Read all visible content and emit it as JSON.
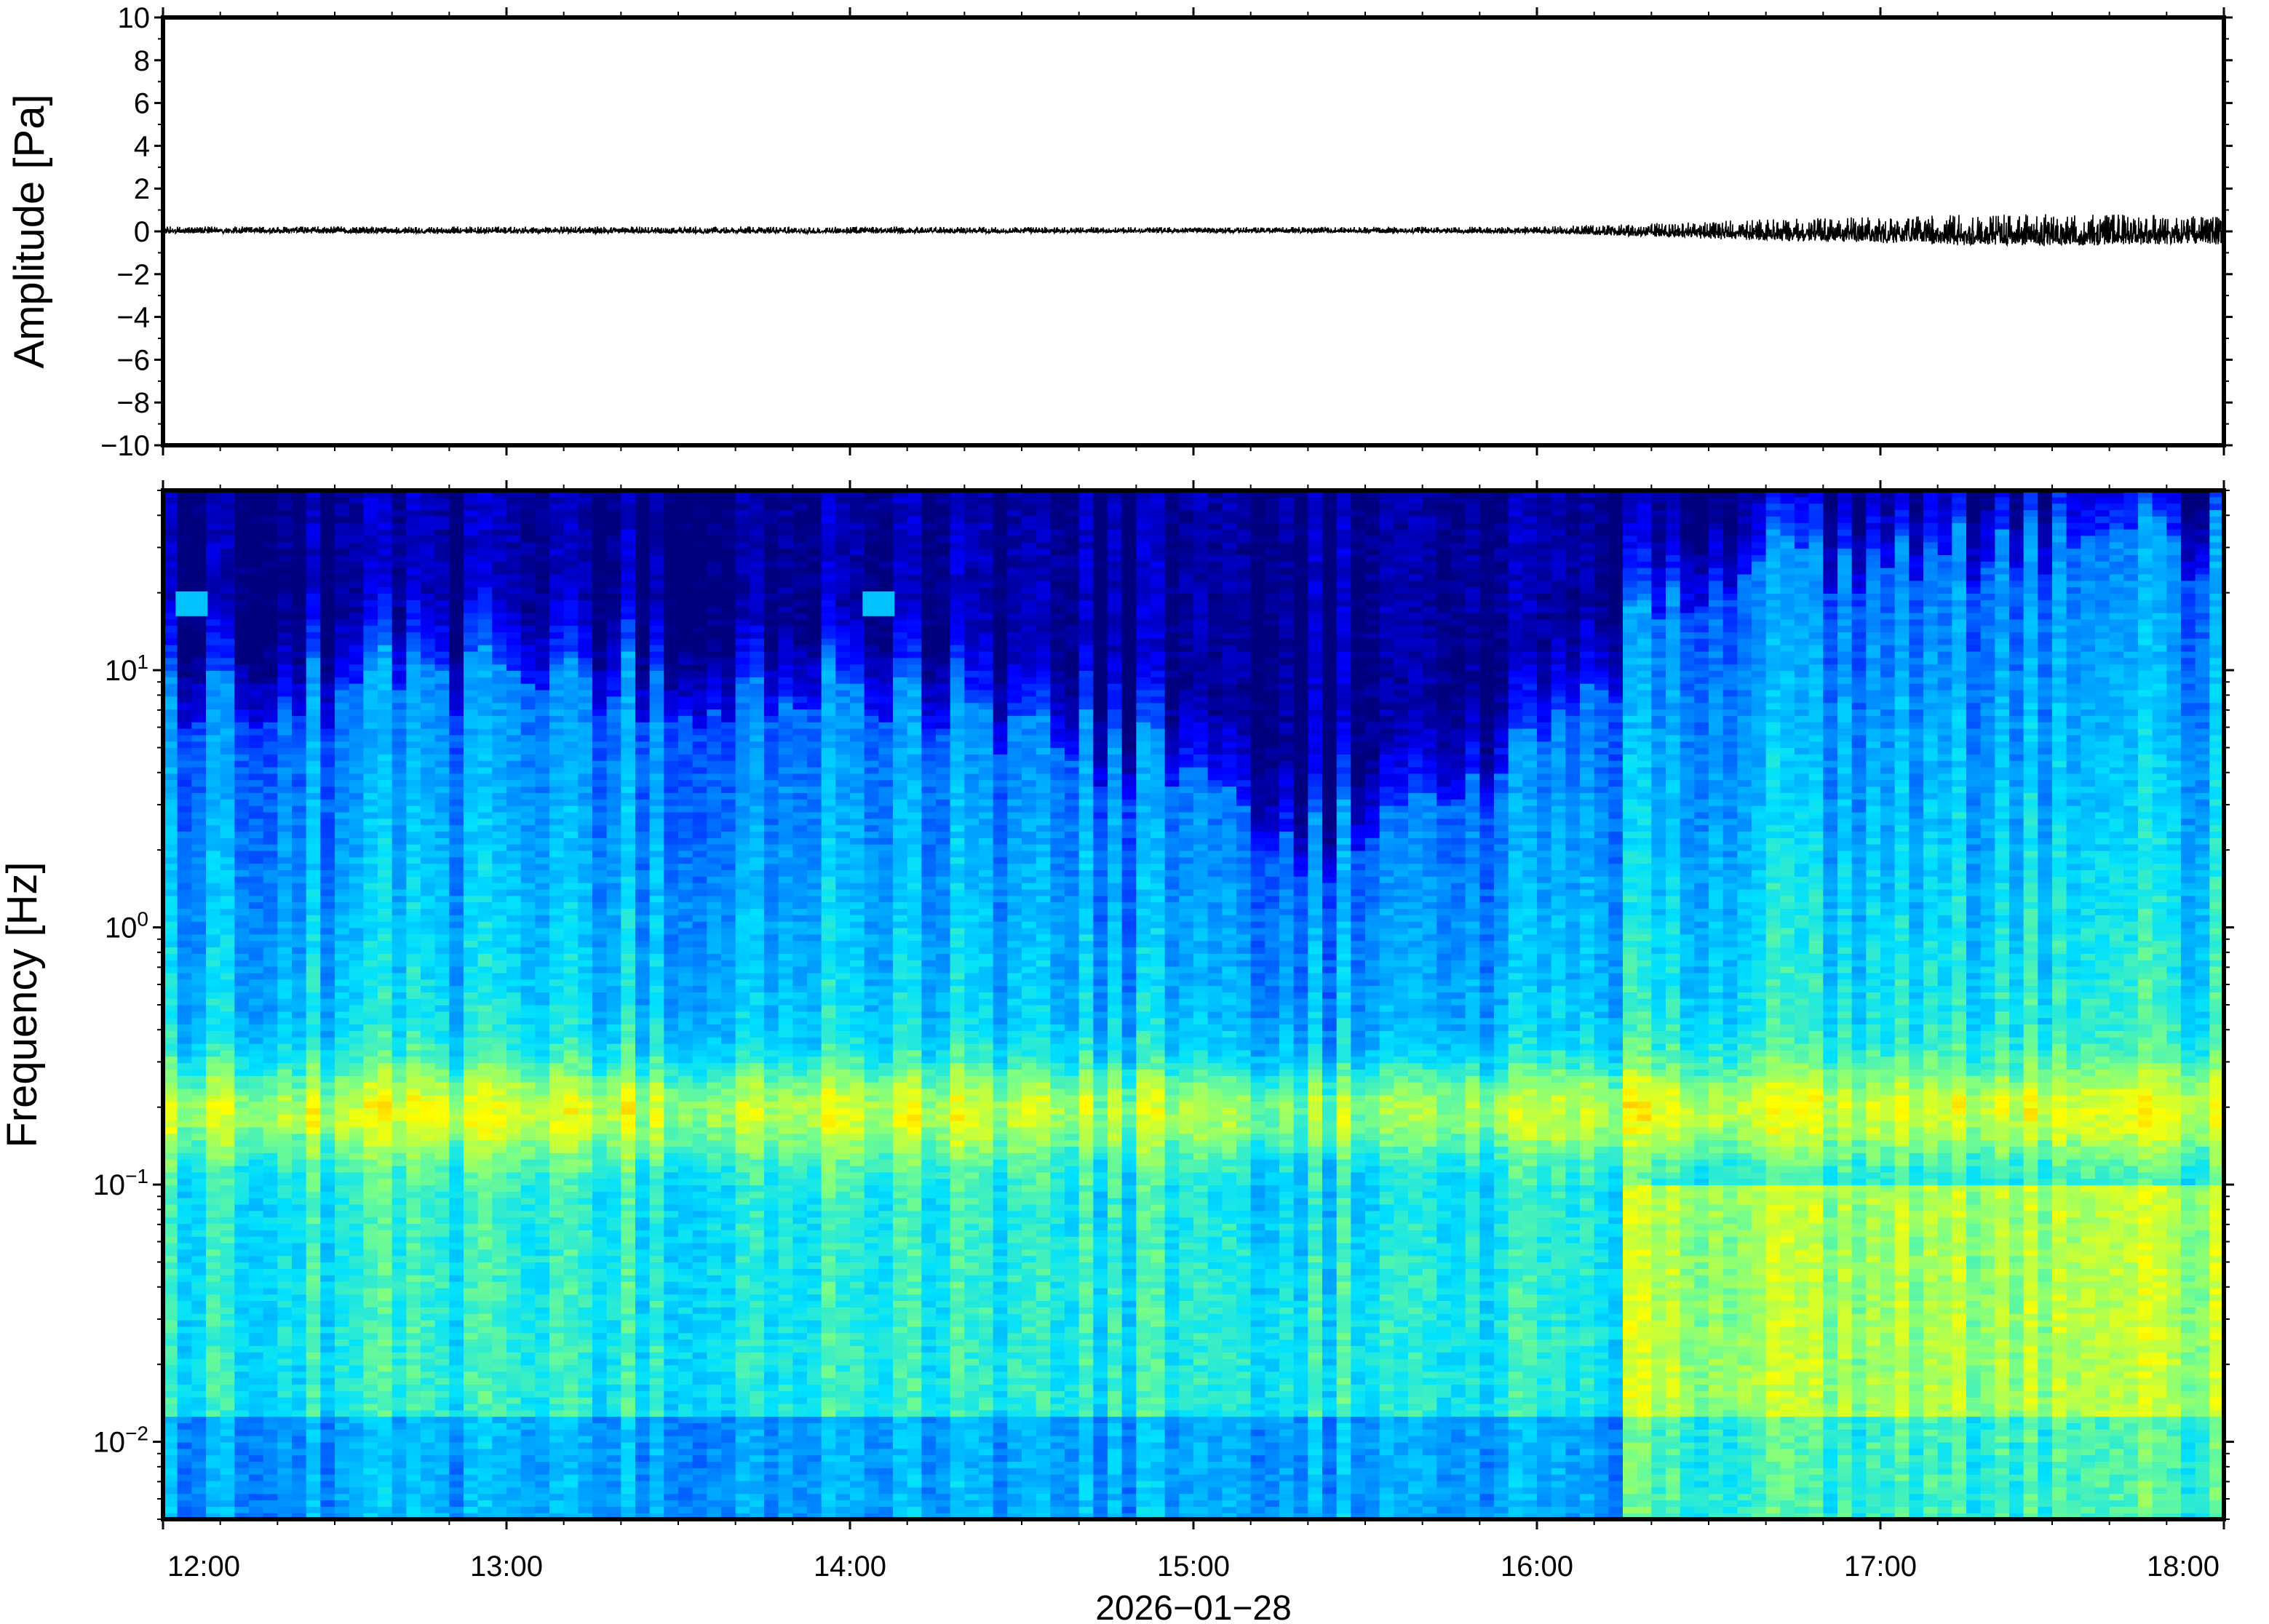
{
  "chart_data": [
    {
      "type": "line",
      "ylabel": "Amplitude [Pa]",
      "ylim": [
        -10,
        10
      ],
      "yticks": [
        {
          "value": 10,
          "label": "10"
        },
        {
          "value": 8,
          "label": "8"
        },
        {
          "value": 6,
          "label": "6"
        },
        {
          "value": 4,
          "label": "4"
        },
        {
          "value": 2,
          "label": "2"
        },
        {
          "value": 0,
          "label": "0"
        },
        {
          "value": -2,
          "label": "−2"
        },
        {
          "value": -4,
          "label": "−4"
        },
        {
          "value": -6,
          "label": "−6"
        },
        {
          "value": -8,
          "label": "−8"
        },
        {
          "value": -10,
          "label": "−10"
        }
      ],
      "xlim": [
        "12:00",
        "18:00"
      ],
      "envelope": {
        "x": [
          "12:00",
          "13:00",
          "14:00",
          "15:00",
          "16:00",
          "16:20",
          "16:35",
          "16:50",
          "17:00",
          "17:15",
          "17:30",
          "17:45",
          "18:00"
        ],
        "half_amplitude": [
          0.15,
          0.15,
          0.15,
          0.12,
          0.15,
          0.3,
          0.45,
          0.55,
          0.6,
          0.7,
          0.75,
          0.7,
          0.65
        ]
      },
      "color": "#000000"
    },
    {
      "type": "heatmap",
      "ylabel": "Frequency [Hz]",
      "yscale": "log",
      "ylim": [
        0.005,
        50
      ],
      "yticks": [
        {
          "value": 10,
          "base": "10",
          "exp": "1"
        },
        {
          "value": 1,
          "base": "10",
          "exp": "0"
        },
        {
          "value": 0.1,
          "base": "10",
          "exp": "−1"
        },
        {
          "value": 0.01,
          "base": "10",
          "exp": "−2"
        }
      ],
      "x_tick_labels": [
        "12:00",
        "13:00",
        "14:00",
        "15:00",
        "16:00",
        "17:00",
        "18:00"
      ],
      "xlabel": "2026−01−28",
      "colormap": [
        "#00007f",
        "#0000ff",
        "#0080ff",
        "#00e0ff",
        "#80ff80",
        "#ffff00",
        "#ff8000"
      ],
      "noise_floor": {
        "x": [
          "12:00",
          "13:00",
          "14:00",
          "14:30",
          "15:00",
          "15:20",
          "15:40",
          "16:00",
          "16:15",
          "16:30",
          "17:00",
          "17:30",
          "18:00"
        ],
        "top_frequency_hz": [
          8,
          9,
          8,
          6,
          4,
          2,
          3,
          5,
          12,
          25,
          28,
          32,
          30
        ]
      },
      "microseism_band_hz": [
        0.15,
        0.25
      ],
      "transients": [
        {
          "x": "12:05",
          "frequency_hz": 18
        },
        {
          "x": "14:05",
          "frequency_hz": 18
        }
      ]
    }
  ]
}
